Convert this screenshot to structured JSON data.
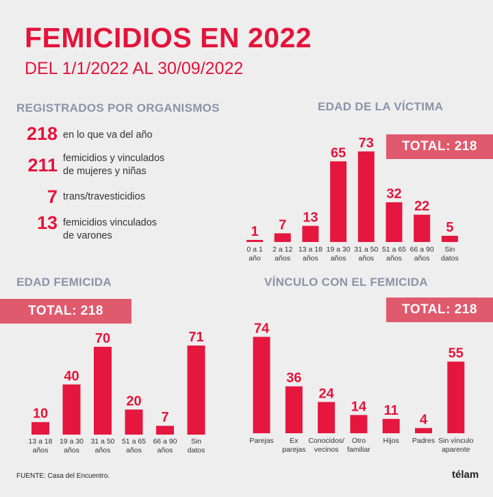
{
  "header": {
    "title": "FEMICIDIOS EN 2022",
    "subtitle": "DEL 1/1/2022 AL 30/09/2022"
  },
  "registrados": {
    "heading": "REGISTRADOS POR ORGANISMOS",
    "items": [
      {
        "value": "218",
        "label": "en lo que va del año"
      },
      {
        "value": "211",
        "label": "femicidios y vinculados\nde mujeres y niñas"
      },
      {
        "value": "7",
        "label": "trans/travesticidios"
      },
      {
        "value": "13",
        "label": "femicidios vinculados\nde varones"
      }
    ]
  },
  "colors": {
    "accent": "#e5133a",
    "bar": "#e5173f",
    "total_bg": "#e05a6e",
    "heading": "#8b93a7"
  },
  "chart_data": [
    {
      "type": "bar",
      "title": "EDAD DE LA VÍCTIMA",
      "total_label": "TOTAL: 218",
      "categories": [
        "0 a 1\naño",
        "2 a 12\naños",
        "13 a 18\naños",
        "19 a 30\naños",
        "31 a 50\naños",
        "51 a 65\naños",
        "66 a 90\naños",
        "Sin\ndatos"
      ],
      "values": [
        1,
        7,
        13,
        65,
        73,
        32,
        22,
        5
      ]
    },
    {
      "type": "bar",
      "title": "EDAD FEMICIDA",
      "total_label": "TOTAL: 218",
      "categories": [
        "13 a 18\naños",
        "19 a 30\naños",
        "31 a 50\naños",
        "51 a 65\naños",
        "66 a 90\naños",
        "Sin\ndatos"
      ],
      "values": [
        10,
        40,
        70,
        20,
        7,
        71
      ]
    },
    {
      "type": "bar",
      "title": "VÍNCULO CON EL FEMICIDA",
      "total_label": "TOTAL: 218",
      "categories": [
        "Parejas",
        "Ex\nparejas",
        "Conocidos/\nvecinos",
        "Otro\nfamiliar",
        "Hijos",
        "Padres",
        "Sin vínculo\naparente"
      ],
      "values": [
        74,
        36,
        24,
        14,
        11,
        4,
        55
      ]
    }
  ],
  "footer": {
    "source": "FUENTE: Casa del Encuentro.",
    "logo": "télam"
  }
}
